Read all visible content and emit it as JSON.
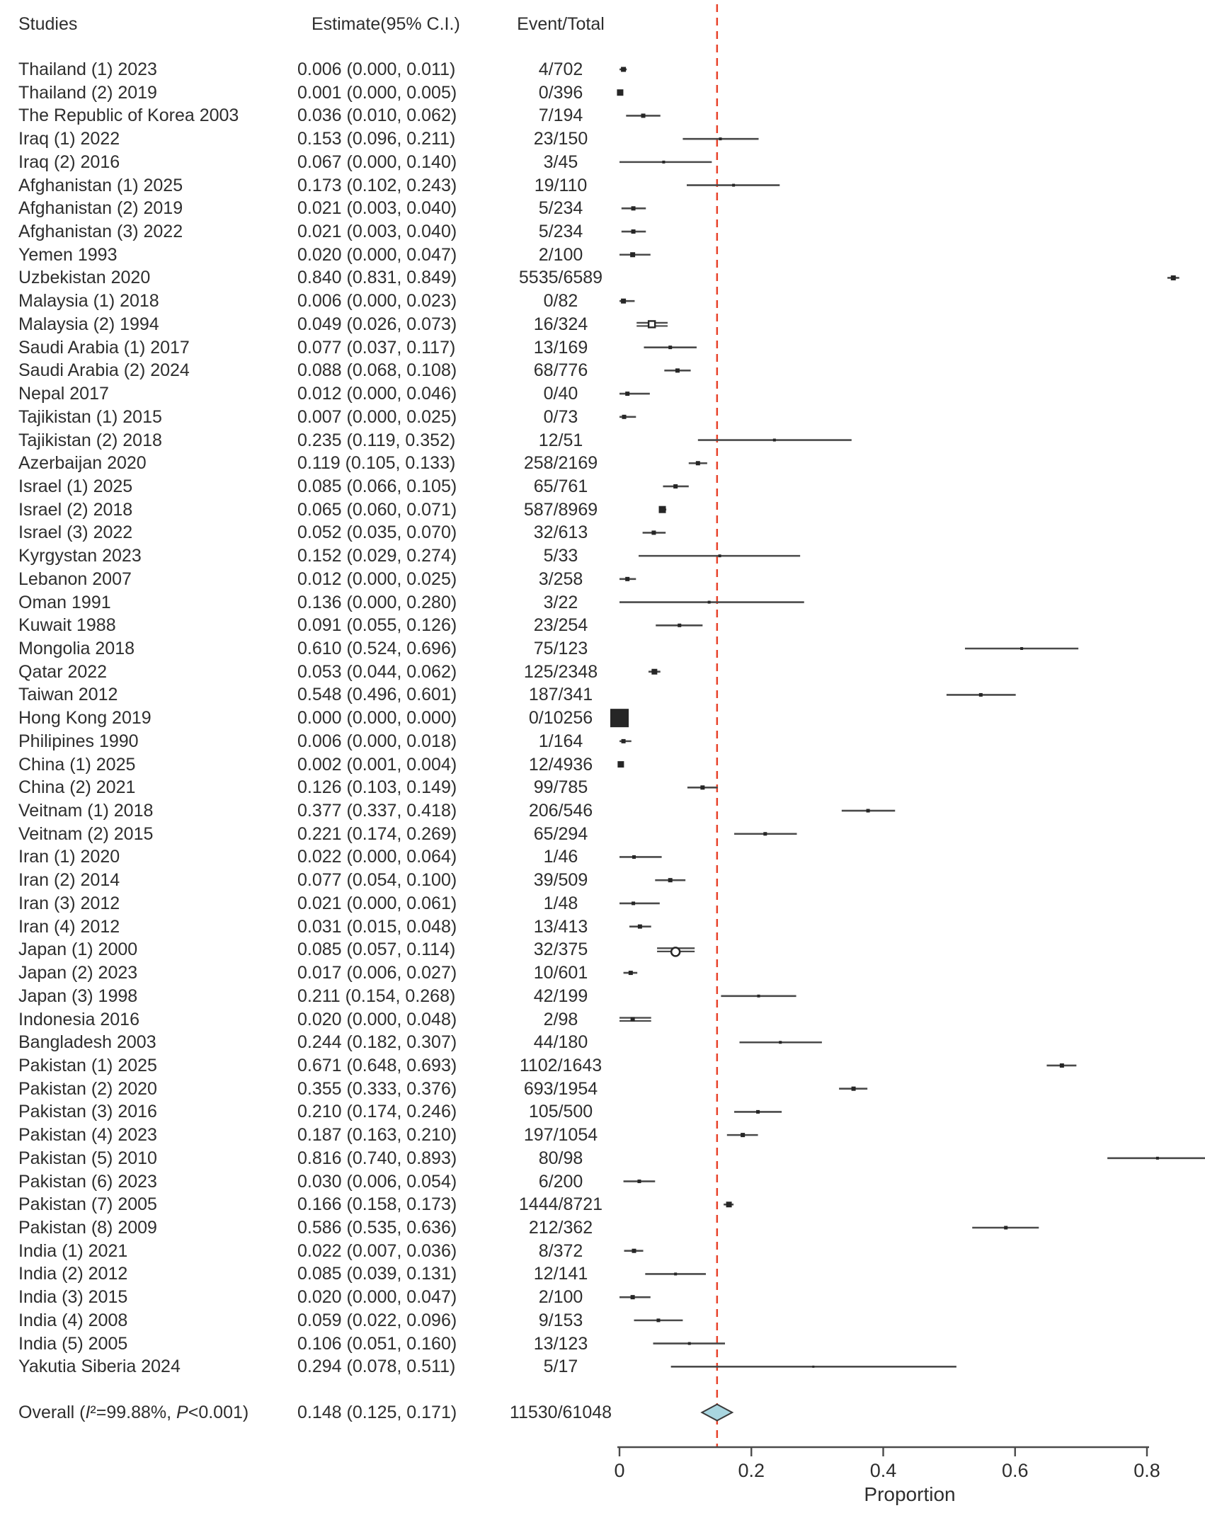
{
  "header": {
    "studies": "Studies",
    "estimate": "Estimate(95% C.I.)",
    "event_total": "Event/Total"
  },
  "colors": {
    "background": "#ffffff",
    "text": "#2e2e2e",
    "ci_line": "#4a4a4a",
    "marker": "#262626",
    "axis": "#4a4a4a",
    "reference": "#e8432b",
    "diamond_fill": "#a9d6e0",
    "diamond_stroke": "#3a3a3a"
  },
  "chart_data": {
    "type": "forest",
    "title": "",
    "xlabel": "Proportion",
    "x_axis": {
      "min": 0,
      "max": 0.8,
      "tick_values": [
        0,
        0.2,
        0.4,
        0.6,
        0.8
      ],
      "tick_labels": [
        "0",
        "0.2",
        "0.4",
        "0.6",
        "0.8"
      ]
    },
    "reference_line": {
      "value": 0.148,
      "style": "dashed",
      "color": "#e8432b"
    },
    "studies": [
      {
        "name": "Thailand (1) 2023",
        "estimate": 0.006,
        "ci_low": 0.0,
        "ci_high": 0.011,
        "estimate_text": "0.006 (0.000, 0.011)",
        "event_total": "4/702",
        "marker": "square",
        "size": 7
      },
      {
        "name": "Thailand (2) 2019",
        "estimate": 0.001,
        "ci_low": 0.0,
        "ci_high": 0.005,
        "estimate_text": "0.001 (0.000, 0.005)",
        "event_total": "0/396",
        "marker": "square",
        "size": 9
      },
      {
        "name": "The Republic of Korea 2003",
        "estimate": 0.036,
        "ci_low": 0.01,
        "ci_high": 0.062,
        "estimate_text": "0.036 (0.010, 0.062)",
        "event_total": "7/194",
        "marker": "square",
        "size": 6
      },
      {
        "name": "Iraq (1) 2022",
        "estimate": 0.153,
        "ci_low": 0.096,
        "ci_high": 0.211,
        "estimate_text": "0.153 (0.096, 0.211)",
        "event_total": "23/150",
        "marker": "square",
        "size": 4
      },
      {
        "name": "Iraq (2) 2016",
        "estimate": 0.067,
        "ci_low": 0.0,
        "ci_high": 0.14,
        "estimate_text": "0.067 (0.000, 0.140)",
        "event_total": "3/45",
        "marker": "square",
        "size": 4
      },
      {
        "name": "Afghanistan (1) 2025",
        "estimate": 0.173,
        "ci_low": 0.102,
        "ci_high": 0.243,
        "estimate_text": "0.173 (0.102, 0.243)",
        "event_total": "19/110",
        "marker": "square",
        "size": 4
      },
      {
        "name": "Afghanistan (2) 2019",
        "estimate": 0.021,
        "ci_low": 0.003,
        "ci_high": 0.04,
        "estimate_text": "0.021 (0.003, 0.040)",
        "event_total": "5/234",
        "marker": "square",
        "size": 6
      },
      {
        "name": "Afghanistan (3) 2022",
        "estimate": 0.021,
        "ci_low": 0.003,
        "ci_high": 0.04,
        "estimate_text": "0.021 (0.003, 0.040)",
        "event_total": "5/234",
        "marker": "square",
        "size": 6
      },
      {
        "name": "Yemen 1993",
        "estimate": 0.02,
        "ci_low": 0.0,
        "ci_high": 0.047,
        "estimate_text": "0.020 (0.000, 0.047)",
        "event_total": "2/100",
        "marker": "square",
        "size": 7
      },
      {
        "name": "Uzbekistan 2020",
        "estimate": 0.84,
        "ci_low": 0.831,
        "ci_high": 0.849,
        "estimate_text": "0.840 (0.831, 0.849)",
        "event_total": "5535/6589",
        "marker": "square",
        "size": 7
      },
      {
        "name": "Malaysia (1) 2018",
        "estimate": 0.006,
        "ci_low": 0.0,
        "ci_high": 0.023,
        "estimate_text": "0.006 (0.000, 0.023)",
        "event_total": "0/82",
        "marker": "square",
        "size": 7
      },
      {
        "name": "Malaysia (2) 1994",
        "estimate": 0.049,
        "ci_low": 0.026,
        "ci_high": 0.073,
        "estimate_text": "0.049 (0.026, 0.073)",
        "event_total": "16/324",
        "marker": "open-square",
        "size": 9,
        "double": true
      },
      {
        "name": "Saudi Arabia (1) 2017",
        "estimate": 0.077,
        "ci_low": 0.037,
        "ci_high": 0.117,
        "estimate_text": "0.077 (0.037, 0.117)",
        "event_total": "13/169",
        "marker": "square",
        "size": 5
      },
      {
        "name": "Saudi Arabia (2) 2024",
        "estimate": 0.088,
        "ci_low": 0.068,
        "ci_high": 0.108,
        "estimate_text": "0.088 (0.068, 0.108)",
        "event_total": "68/776",
        "marker": "square",
        "size": 6
      },
      {
        "name": "Nepal 2017",
        "estimate": 0.012,
        "ci_low": 0.0,
        "ci_high": 0.046,
        "estimate_text": "0.012 (0.000, 0.046)",
        "event_total": "0/40",
        "marker": "square",
        "size": 6
      },
      {
        "name": "Tajikistan (1) 2015",
        "estimate": 0.007,
        "ci_low": 0.0,
        "ci_high": 0.025,
        "estimate_text": "0.007 (0.000, 0.025)",
        "event_total": "0/73",
        "marker": "square",
        "size": 6
      },
      {
        "name": "Tajikistan (2) 2018",
        "estimate": 0.235,
        "ci_low": 0.119,
        "ci_high": 0.352,
        "estimate_text": "0.235 (0.119, 0.352)",
        "event_total": "12/51",
        "marker": "square",
        "size": 4
      },
      {
        "name": "Azerbaijan 2020",
        "estimate": 0.119,
        "ci_low": 0.105,
        "ci_high": 0.133,
        "estimate_text": "0.119 (0.105, 0.133)",
        "event_total": "258/2169",
        "marker": "square",
        "size": 6
      },
      {
        "name": "Israel (1) 2025",
        "estimate": 0.085,
        "ci_low": 0.066,
        "ci_high": 0.105,
        "estimate_text": "0.085 (0.066, 0.105)",
        "event_total": "65/761",
        "marker": "square",
        "size": 6
      },
      {
        "name": "Israel (2) 2018",
        "estimate": 0.065,
        "ci_low": 0.06,
        "ci_high": 0.071,
        "estimate_text": "0.065 (0.060, 0.071)",
        "event_total": "587/8969",
        "marker": "square",
        "size": 10
      },
      {
        "name": "Israel (3) 2022",
        "estimate": 0.052,
        "ci_low": 0.035,
        "ci_high": 0.07,
        "estimate_text": "0.052 (0.035, 0.070)",
        "event_total": "32/613",
        "marker": "square",
        "size": 6
      },
      {
        "name": "Kyrgystan 2023",
        "estimate": 0.152,
        "ci_low": 0.029,
        "ci_high": 0.274,
        "estimate_text": "0.152 (0.029, 0.274)",
        "event_total": "5/33",
        "marker": "square",
        "size": 4
      },
      {
        "name": "Lebanon 2007",
        "estimate": 0.012,
        "ci_low": 0.0,
        "ci_high": 0.025,
        "estimate_text": "0.012 (0.000, 0.025)",
        "event_total": "3/258",
        "marker": "square",
        "size": 6
      },
      {
        "name": "Oman 1991",
        "estimate": 0.136,
        "ci_low": 0.0,
        "ci_high": 0.28,
        "estimate_text": "0.136 (0.000, 0.280)",
        "event_total": "3/22",
        "marker": "square",
        "size": 4
      },
      {
        "name": "Kuwait 1988",
        "estimate": 0.091,
        "ci_low": 0.055,
        "ci_high": 0.126,
        "estimate_text": "0.091 (0.055, 0.126)",
        "event_total": "23/254",
        "marker": "square",
        "size": 5
      },
      {
        "name": "Mongolia 2018",
        "estimate": 0.61,
        "ci_low": 0.524,
        "ci_high": 0.696,
        "estimate_text": "0.610 (0.524, 0.696)",
        "event_total": "75/123",
        "marker": "square",
        "size": 4
      },
      {
        "name": "Qatar 2022",
        "estimate": 0.053,
        "ci_low": 0.044,
        "ci_high": 0.062,
        "estimate_text": "0.053 (0.044, 0.062)",
        "event_total": "125/2348",
        "marker": "square",
        "size": 8
      },
      {
        "name": "Taiwan 2012",
        "estimate": 0.548,
        "ci_low": 0.496,
        "ci_high": 0.601,
        "estimate_text": "0.548 (0.496, 0.601)",
        "event_total": "187/341",
        "marker": "square",
        "size": 5
      },
      {
        "name": "Hong Kong 2019",
        "estimate": 0.0,
        "ci_low": 0.0,
        "ci_high": 0.0,
        "estimate_text": "0.000 (0.000, 0.000)",
        "event_total": "0/10256",
        "marker": "square",
        "size": 26
      },
      {
        "name": "Philipines 1990",
        "estimate": 0.006,
        "ci_low": 0.0,
        "ci_high": 0.018,
        "estimate_text": "0.006 (0.000, 0.018)",
        "event_total": "1/164",
        "marker": "square",
        "size": 6
      },
      {
        "name": "China (1) 2025",
        "estimate": 0.002,
        "ci_low": 0.001,
        "ci_high": 0.004,
        "estimate_text": "0.002 (0.001, 0.004)",
        "event_total": "12/4936",
        "marker": "square",
        "size": 9
      },
      {
        "name": "China (2) 2021",
        "estimate": 0.126,
        "ci_low": 0.103,
        "ci_high": 0.149,
        "estimate_text": "0.126 (0.103, 0.149)",
        "event_total": "99/785",
        "marker": "square",
        "size": 6
      },
      {
        "name": "Veitnam (1) 2018",
        "estimate": 0.377,
        "ci_low": 0.337,
        "ci_high": 0.418,
        "estimate_text": "0.377 (0.337, 0.418)",
        "event_total": "206/546",
        "marker": "square",
        "size": 5
      },
      {
        "name": "Veitnam (2) 2015",
        "estimate": 0.221,
        "ci_low": 0.174,
        "ci_high": 0.269,
        "estimate_text": "0.221 (0.174, 0.269)",
        "event_total": "65/294",
        "marker": "square",
        "size": 5
      },
      {
        "name": "Iran (1) 2020",
        "estimate": 0.022,
        "ci_low": 0.0,
        "ci_high": 0.064,
        "estimate_text": "0.022 (0.000, 0.064)",
        "event_total": "1/46",
        "marker": "square",
        "size": 5
      },
      {
        "name": "Iran (2) 2014",
        "estimate": 0.077,
        "ci_low": 0.054,
        "ci_high": 0.1,
        "estimate_text": "0.077 (0.054, 0.100)",
        "event_total": "39/509",
        "marker": "square",
        "size": 6
      },
      {
        "name": "Iran (3) 2012",
        "estimate": 0.021,
        "ci_low": 0.0,
        "ci_high": 0.061,
        "estimate_text": "0.021 (0.000, 0.061)",
        "event_total": "1/48",
        "marker": "square",
        "size": 5
      },
      {
        "name": "Iran (4) 2012",
        "estimate": 0.031,
        "ci_low": 0.015,
        "ci_high": 0.048,
        "estimate_text": "0.031 (0.015, 0.048)",
        "event_total": "13/413",
        "marker": "square",
        "size": 6
      },
      {
        "name": "Japan (1) 2000",
        "estimate": 0.085,
        "ci_low": 0.057,
        "ci_high": 0.114,
        "estimate_text": "0.085 (0.057, 0.114)",
        "event_total": "32/375",
        "marker": "open-circle",
        "size": 12,
        "double": true
      },
      {
        "name": "Japan (2) 2023",
        "estimate": 0.017,
        "ci_low": 0.006,
        "ci_high": 0.027,
        "estimate_text": "0.017 (0.006, 0.027)",
        "event_total": "10/601",
        "marker": "square",
        "size": 6
      },
      {
        "name": "Japan (3) 1998",
        "estimate": 0.211,
        "ci_low": 0.154,
        "ci_high": 0.268,
        "estimate_text": "0.211 (0.154, 0.268)",
        "event_total": "42/199",
        "marker": "square",
        "size": 4
      },
      {
        "name": "Indonesia 2016",
        "estimate": 0.02,
        "ci_low": 0.0,
        "ci_high": 0.048,
        "estimate_text": "0.020 (0.000, 0.048)",
        "event_total": "2/98",
        "marker": "square",
        "size": 6,
        "double": true
      },
      {
        "name": "Bangladesh 2003",
        "estimate": 0.244,
        "ci_low": 0.182,
        "ci_high": 0.307,
        "estimate_text": "0.244 (0.182, 0.307)",
        "event_total": "44/180",
        "marker": "square",
        "size": 4
      },
      {
        "name": "Pakistan (1) 2025",
        "estimate": 0.671,
        "ci_low": 0.648,
        "ci_high": 0.693,
        "estimate_text": "0.671 (0.648, 0.693)",
        "event_total": "1102/1643",
        "marker": "square",
        "size": 6
      },
      {
        "name": "Pakistan (2) 2020",
        "estimate": 0.355,
        "ci_low": 0.333,
        "ci_high": 0.376,
        "estimate_text": "0.355 (0.333, 0.376)",
        "event_total": "693/1954",
        "marker": "square",
        "size": 6
      },
      {
        "name": "Pakistan (3) 2016",
        "estimate": 0.21,
        "ci_low": 0.174,
        "ci_high": 0.246,
        "estimate_text": "0.210 (0.174, 0.246)",
        "event_total": "105/500",
        "marker": "square",
        "size": 5
      },
      {
        "name": "Pakistan (4) 2023",
        "estimate": 0.187,
        "ci_low": 0.163,
        "ci_high": 0.21,
        "estimate_text": "0.187 (0.163, 0.210)",
        "event_total": "197/1054",
        "marker": "square",
        "size": 6
      },
      {
        "name": "Pakistan (5) 2010",
        "estimate": 0.816,
        "ci_low": 0.74,
        "ci_high": 0.893,
        "estimate_text": "0.816 (0.740, 0.893)",
        "event_total": "80/98",
        "marker": "square",
        "size": 4
      },
      {
        "name": "Pakistan (6) 2023",
        "estimate": 0.03,
        "ci_low": 0.006,
        "ci_high": 0.054,
        "estimate_text": "0.030 (0.006, 0.054)",
        "event_total": "6/200",
        "marker": "square",
        "size": 5
      },
      {
        "name": "Pakistan (7) 2005",
        "estimate": 0.166,
        "ci_low": 0.158,
        "ci_high": 0.173,
        "estimate_text": "0.166 (0.158, 0.173)",
        "event_total": "1444/8721",
        "marker": "square",
        "size": 8
      },
      {
        "name": "Pakistan (8) 2009",
        "estimate": 0.586,
        "ci_low": 0.535,
        "ci_high": 0.636,
        "estimate_text": "0.586 (0.535, 0.636)",
        "event_total": "212/362",
        "marker": "square",
        "size": 5
      },
      {
        "name": "India (1) 2021",
        "estimate": 0.022,
        "ci_low": 0.007,
        "ci_high": 0.036,
        "estimate_text": "0.022 (0.007, 0.036)",
        "event_total": "8/372",
        "marker": "square",
        "size": 6
      },
      {
        "name": "India (2) 2012",
        "estimate": 0.085,
        "ci_low": 0.039,
        "ci_high": 0.131,
        "estimate_text": "0.085 (0.039, 0.131)",
        "event_total": "12/141",
        "marker": "square",
        "size": 4
      },
      {
        "name": "India (3) 2015",
        "estimate": 0.02,
        "ci_low": 0.0,
        "ci_high": 0.047,
        "estimate_text": "0.020 (0.000, 0.047)",
        "event_total": "2/100",
        "marker": "square",
        "size": 6
      },
      {
        "name": "India (4) 2008",
        "estimate": 0.059,
        "ci_low": 0.022,
        "ci_high": 0.096,
        "estimate_text": "0.059 (0.022, 0.096)",
        "event_total": "9/153",
        "marker": "square",
        "size": 5
      },
      {
        "name": "India (5) 2005",
        "estimate": 0.106,
        "ci_low": 0.051,
        "ci_high": 0.16,
        "estimate_text": "0.106 (0.051, 0.160)",
        "event_total": "13/123",
        "marker": "square",
        "size": 4
      },
      {
        "name": "Yakutia Siberia 2024",
        "estimate": 0.294,
        "ci_low": 0.078,
        "ci_high": 0.511,
        "estimate_text": "0.294 (0.078, 0.511)",
        "event_total": "5/17",
        "marker": "square",
        "size": 3
      }
    ],
    "overall": {
      "label_parts": [
        {
          "t": "Overall (",
          "i": false
        },
        {
          "t": "I",
          "i": true
        },
        {
          "t": "²",
          "i": false
        },
        {
          "t": "=99.88%, ",
          "i": false
        },
        {
          "t": "P",
          "i": true
        },
        {
          "t": "<0.001)",
          "i": false
        }
      ],
      "estimate": 0.148,
      "ci_low": 0.125,
      "ci_high": 0.171,
      "estimate_text": "0.148 (0.125, 0.171)",
      "event_total": "11530/61048",
      "heterogeneity_i2": "99.88%",
      "p_value": "<0.001"
    }
  }
}
